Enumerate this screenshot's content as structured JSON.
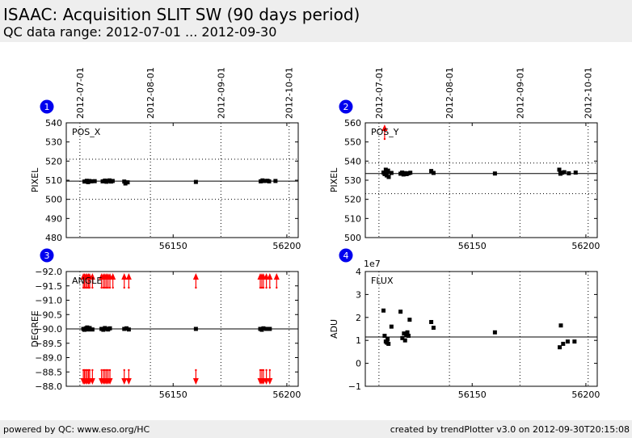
{
  "header": {
    "title": "ISAAC: Acquisition SLIT SW (90 days period)",
    "subtitle": "QC data range: 2012-07-01 ... 2012-09-30"
  },
  "footer": {
    "left": "powered by QC: www.eso.org/HC",
    "right": "created by trendPlotter v3.0 on 2012-09-30T20:15:08"
  },
  "colors": {
    "data": "#000000",
    "outlier": "#ff0000",
    "badge": "#0000ee"
  },
  "chart_data": [
    {
      "type": "scatter",
      "badge": "1",
      "panel_label": "POS_X",
      "ylabel": "PIXEL",
      "xlim": [
        56103,
        56205
      ],
      "ylim": [
        480,
        540
      ],
      "yticks": [
        480,
        490,
        500,
        510,
        520,
        530,
        540
      ],
      "ytick_labels": [
        "480",
        "490",
        "500",
        "510",
        "520",
        "530",
        "540"
      ],
      "xticks": [
        56150,
        56200
      ],
      "xtick_labels": [
        "56150",
        "56200"
      ],
      "date_ticks": [
        56109,
        56140,
        56171,
        56201
      ],
      "date_labels": [
        "2012-07-01",
        "2012-08-01",
        "2012-09-01",
        "2012-10-01"
      ],
      "grid": "vertical dotted at month starts",
      "ref_line": 509.5,
      "dotted_lines": [
        500,
        521
      ],
      "points": [
        {
          "x": 56111,
          "y": 509.3
        },
        {
          "x": 56112,
          "y": 509.7
        },
        {
          "x": 56112.6,
          "y": 509.0
        },
        {
          "x": 56113.2,
          "y": 509.6
        },
        {
          "x": 56114,
          "y": 509.4
        },
        {
          "x": 56115.5,
          "y": 509.5
        },
        {
          "x": 56119,
          "y": 509.4
        },
        {
          "x": 56120,
          "y": 509.8
        },
        {
          "x": 56120.7,
          "y": 509.2
        },
        {
          "x": 56121.3,
          "y": 509.6
        },
        {
          "x": 56122,
          "y": 509.9
        },
        {
          "x": 56122.7,
          "y": 509.3
        },
        {
          "x": 56123.4,
          "y": 509.6
        },
        {
          "x": 56128.5,
          "y": 509.3
        },
        {
          "x": 56129,
          "y": 508.3
        },
        {
          "x": 56130,
          "y": 508.9
        },
        {
          "x": 56160,
          "y": 509.1
        },
        {
          "x": 56188.5,
          "y": 509.4
        },
        {
          "x": 56189.3,
          "y": 509.9
        },
        {
          "x": 56190,
          "y": 509.6
        },
        {
          "x": 56191.5,
          "y": 509.7
        },
        {
          "x": 56192.2,
          "y": 509.4
        },
        {
          "x": 56195,
          "y": 509.6
        }
      ],
      "outliers_high": [],
      "outliers_low": []
    },
    {
      "type": "scatter",
      "badge": "2",
      "panel_label": "POS_Y",
      "ylabel": "PIXEL",
      "xlim": [
        56103,
        56205
      ],
      "ylim": [
        500,
        560
      ],
      "yticks": [
        500,
        510,
        520,
        530,
        540,
        550,
        560
      ],
      "ytick_labels": [
        "500",
        "510",
        "520",
        "530",
        "540",
        "550",
        "560"
      ],
      "xticks": [
        56150,
        56200
      ],
      "xtick_labels": [
        "56150",
        "56200"
      ],
      "date_ticks": [
        56109,
        56140,
        56171,
        56201
      ],
      "date_labels": [
        "2012-07-01",
        "2012-08-01",
        "2012-09-01",
        "2012-10-01"
      ],
      "grid": "vertical dotted at month starts",
      "ref_line": 533.5,
      "dotted_lines": [
        523,
        539
      ],
      "points": [
        {
          "x": 56111,
          "y": 534.0
        },
        {
          "x": 56111.5,
          "y": 533.2
        },
        {
          "x": 56112,
          "y": 535.5
        },
        {
          "x": 56112.4,
          "y": 532.5
        },
        {
          "x": 56112.8,
          "y": 534.5
        },
        {
          "x": 56113,
          "y": 535.0
        },
        {
          "x": 56113.3,
          "y": 531.7
        },
        {
          "x": 56114.5,
          "y": 533.8
        },
        {
          "x": 56118.5,
          "y": 533.4
        },
        {
          "x": 56119.2,
          "y": 534.0
        },
        {
          "x": 56119.8,
          "y": 533.0
        },
        {
          "x": 56120.5,
          "y": 533.7
        },
        {
          "x": 56121.2,
          "y": 533.2
        },
        {
          "x": 56122,
          "y": 533.6
        },
        {
          "x": 56122.8,
          "y": 533.9
        },
        {
          "x": 56132,
          "y": 534.8
        },
        {
          "x": 56133,
          "y": 533.8
        },
        {
          "x": 56160,
          "y": 533.5
        },
        {
          "x": 56188.3,
          "y": 535.5
        },
        {
          "x": 56188.8,
          "y": 533.4
        },
        {
          "x": 56189.5,
          "y": 533.9
        },
        {
          "x": 56190.5,
          "y": 534.2
        },
        {
          "x": 56192.5,
          "y": 533.6
        },
        {
          "x": 56195.5,
          "y": 534.0
        }
      ],
      "outliers_high": [
        56111.5
      ],
      "outliers_low": []
    },
    {
      "type": "scatter",
      "badge": "3",
      "panel_label": "ANGLE",
      "ylabel": "DEGREE",
      "xlim": [
        56103,
        56205
      ],
      "ylim": [
        -88.0,
        -92.0
      ],
      "yticks": [
        -92.0,
        -91.5,
        -91.0,
        -90.5,
        -90.0,
        -89.5,
        -89.0,
        -88.5,
        -88.0
      ],
      "ytick_labels": [
        "−92.0",
        "−91.5",
        "−91.0",
        "−90.5",
        "−90.0",
        "−89.5",
        "−89.0",
        "−88.5",
        "−88.0"
      ],
      "xticks": [
        56150,
        56200
      ],
      "xtick_labels": [
        "56150",
        "56200"
      ],
      "date_ticks": [
        56109,
        56140,
        56171,
        56201
      ],
      "date_labels": [],
      "grid": "vertical dotted at month starts",
      "ref_line": -90.0,
      "dotted_lines": [],
      "points": [
        {
          "x": 56110.5,
          "y": -90.0
        },
        {
          "x": 56111,
          "y": -89.97
        },
        {
          "x": 56111.6,
          "y": -90.02
        },
        {
          "x": 56112.2,
          "y": -90.05
        },
        {
          "x": 56112.8,
          "y": -89.98
        },
        {
          "x": 56113.3,
          "y": -90.03
        },
        {
          "x": 56114.5,
          "y": -89.98
        },
        {
          "x": 56118.5,
          "y": -90.0
        },
        {
          "x": 56119.3,
          "y": -89.97
        },
        {
          "x": 56120,
          "y": -90.03
        },
        {
          "x": 56120.7,
          "y": -90.0
        },
        {
          "x": 56121.4,
          "y": -89.98
        },
        {
          "x": 56122.2,
          "y": -90.02
        },
        {
          "x": 56128.5,
          "y": -90.0
        },
        {
          "x": 56129.5,
          "y": -90.02
        },
        {
          "x": 56130.5,
          "y": -89.98
        },
        {
          "x": 56160,
          "y": -90.0
        },
        {
          "x": 56188.3,
          "y": -90.0
        },
        {
          "x": 56189,
          "y": -89.97
        },
        {
          "x": 56189.7,
          "y": -90.02
        },
        {
          "x": 56191,
          "y": -90.0
        },
        {
          "x": 56192.5,
          "y": -90.0
        }
      ],
      "outliers_high": [
        56110.5,
        56111,
        56111.6,
        56112.2,
        56112.8,
        56113.3,
        56114.5,
        56118.5,
        56119.3,
        56120,
        56120.7,
        56121.4,
        56122.2,
        56123.5,
        56128.5,
        56130.5,
        56160,
        56188.3,
        56189,
        56189.7,
        56191,
        56192.5,
        56195.5
      ],
      "outliers_low": [
        56110.5,
        56111,
        56111.6,
        56112.2,
        56112.8,
        56113.3,
        56114.5,
        56118.5,
        56119.3,
        56120,
        56120.7,
        56121.4,
        56122.2,
        56128.5,
        56130.5,
        56160,
        56188.3,
        56189,
        56189.7,
        56191,
        56192.5
      ]
    },
    {
      "type": "scatter",
      "badge": "4",
      "panel_label": "FLUX",
      "ylabel": "ADU",
      "scale_label": "1e7",
      "xlim": [
        56103,
        56205
      ],
      "ylim": [
        -1,
        4
      ],
      "yticks": [
        -1,
        0,
        1,
        2,
        3,
        4
      ],
      "ytick_labels": [
        "−1",
        "0",
        "1",
        "2",
        "3",
        "4"
      ],
      "xticks": [
        56150,
        56200
      ],
      "xtick_labels": [
        "56150",
        "56200"
      ],
      "date_ticks": [
        56109,
        56140,
        56171,
        56201
      ],
      "date_labels": [],
      "grid": "vertical dotted at month starts",
      "ref_line": 1.15,
      "dotted_lines": [],
      "points": [
        {
          "x": 56111,
          "y": 2.3
        },
        {
          "x": 56111.5,
          "y": 1.2
        },
        {
          "x": 56112,
          "y": 0.95
        },
        {
          "x": 56112.5,
          "y": 0.9
        },
        {
          "x": 56112.8,
          "y": 1.05
        },
        {
          "x": 56113.2,
          "y": 0.85
        },
        {
          "x": 56114.5,
          "y": 1.6
        },
        {
          "x": 56118.5,
          "y": 2.25
        },
        {
          "x": 56119.3,
          "y": 1.1
        },
        {
          "x": 56120,
          "y": 1.3
        },
        {
          "x": 56120.5,
          "y": 1.0
        },
        {
          "x": 56121,
          "y": 1.25
        },
        {
          "x": 56121.5,
          "y": 1.35
        },
        {
          "x": 56122,
          "y": 1.2
        },
        {
          "x": 56122.5,
          "y": 1.9
        },
        {
          "x": 56132,
          "y": 1.8
        },
        {
          "x": 56133,
          "y": 1.55
        },
        {
          "x": 56160,
          "y": 1.35
        },
        {
          "x": 56188.5,
          "y": 0.7
        },
        {
          "x": 56189,
          "y": 1.65
        },
        {
          "x": 56190,
          "y": 0.85
        },
        {
          "x": 56192,
          "y": 0.95
        },
        {
          "x": 56195,
          "y": 0.95
        }
      ],
      "outliers_high": [],
      "outliers_low": []
    }
  ]
}
